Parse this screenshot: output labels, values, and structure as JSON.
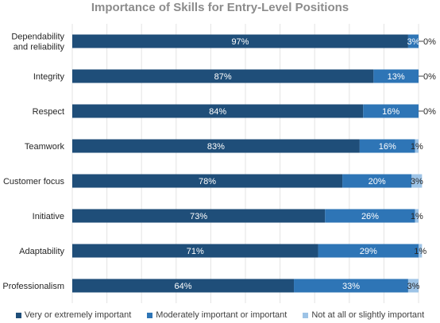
{
  "chart_data": {
    "type": "bar",
    "orientation": "horizontal",
    "stacked": true,
    "title": "Importance of Skills for Entry-Level Positions",
    "categories": [
      "Dependability and reliability",
      "Integrity",
      "Respect",
      "Teamwork",
      "Customer focus",
      "Initiative",
      "Adaptability",
      "Professionalism"
    ],
    "category_lines": [
      [
        "Dependability",
        "and reliability"
      ],
      [
        "Integrity"
      ],
      [
        "Respect"
      ],
      [
        "Teamwork"
      ],
      [
        "Customer focus"
      ],
      [
        "Initiative"
      ],
      [
        "Adaptability"
      ],
      [
        "Professionalism"
      ]
    ],
    "series": [
      {
        "name": "Very or extremely important",
        "color": "#1f4e79",
        "values": [
          97,
          87,
          84,
          83,
          78,
          73,
          71,
          64
        ]
      },
      {
        "name": "Moderately important or important",
        "color": "#2e75b6",
        "values": [
          3,
          13,
          16,
          16,
          20,
          26,
          29,
          33
        ]
      },
      {
        "name": "Not at all or slightly important",
        "color": "#9dc3e6",
        "values": [
          0,
          0,
          0,
          1,
          3,
          1,
          1,
          3
        ]
      }
    ],
    "data_labels": [
      [
        "97%",
        "3%",
        "0%"
      ],
      [
        "87%",
        "13%",
        "0%"
      ],
      [
        "84%",
        "16%",
        "0%"
      ],
      [
        "83%",
        "16%",
        "1%"
      ],
      [
        "78%",
        "20%",
        "3%"
      ],
      [
        "73%",
        "26%",
        "1%"
      ],
      [
        "71%",
        "29%",
        "1%"
      ],
      [
        "64%",
        "33%",
        "3%"
      ]
    ],
    "xlim": [
      0,
      100
    ],
    "grid": true,
    "legend_position": "bottom"
  }
}
